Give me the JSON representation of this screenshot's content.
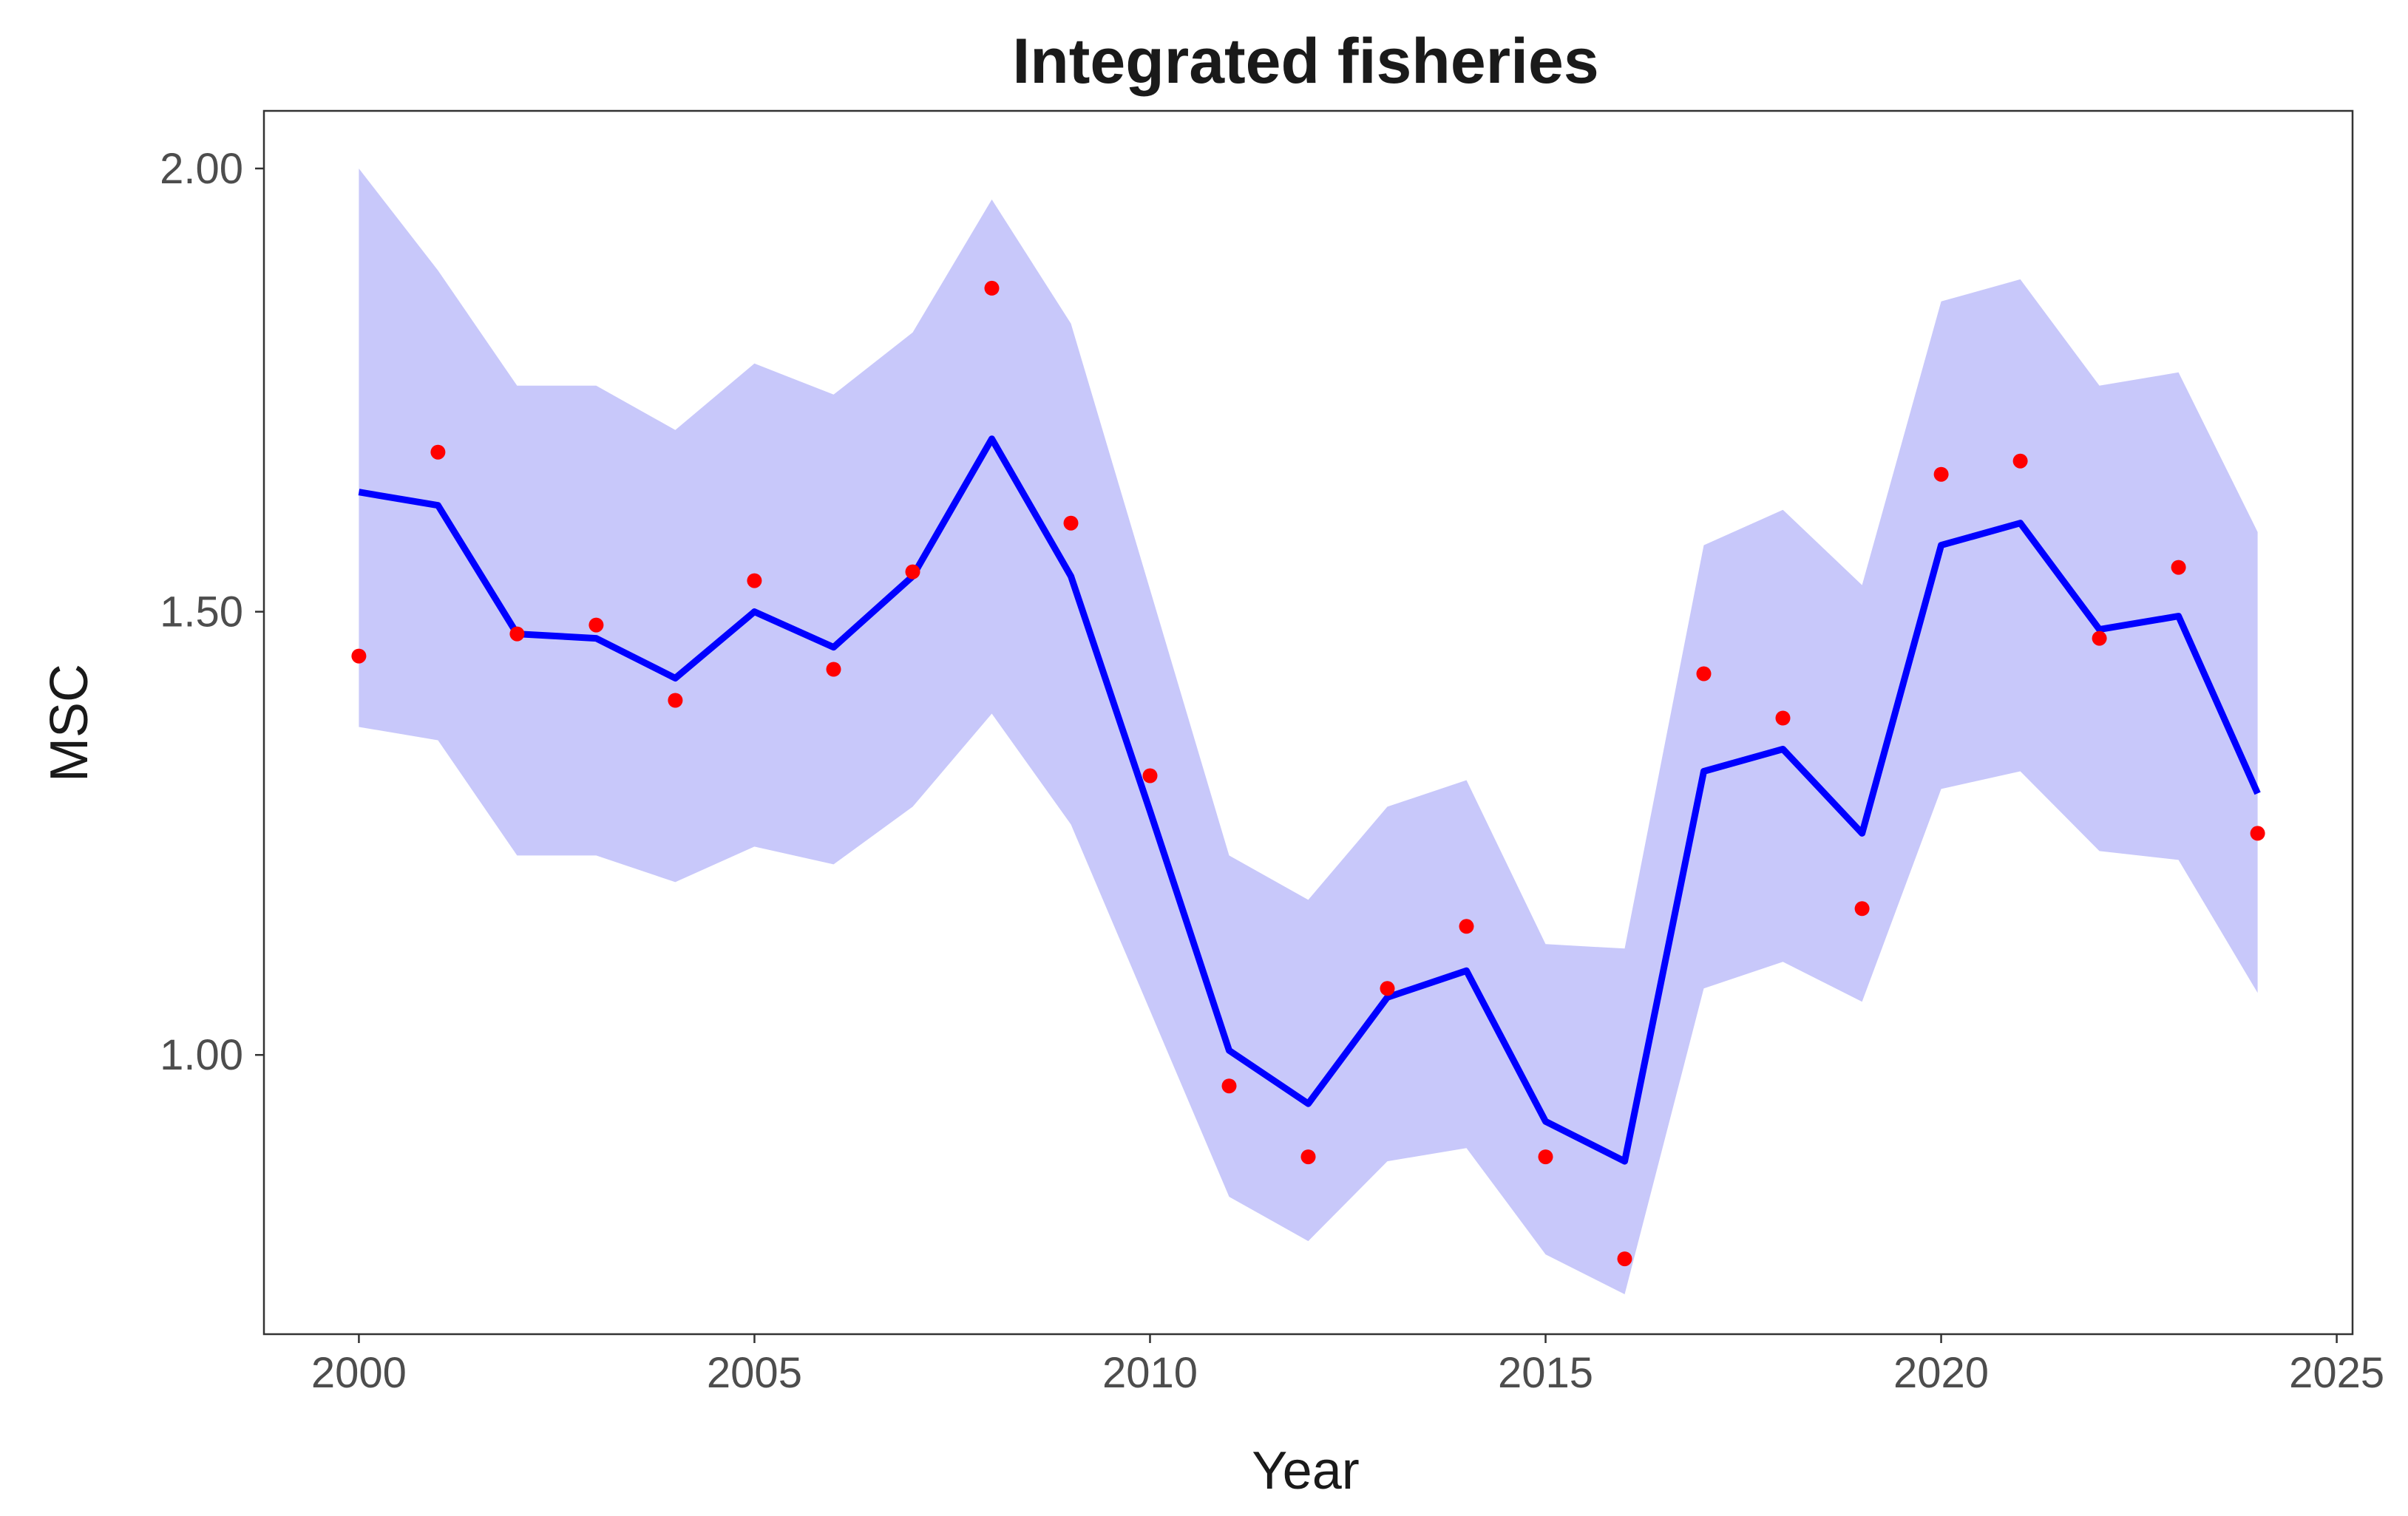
{
  "chart_data": {
    "type": "line",
    "title": "Integrated fisheries",
    "xlabel": "Year",
    "ylabel": "MSC",
    "xlim": [
      1998.8,
      2025.2
    ],
    "ylim": [
      0.685,
      2.065
    ],
    "x_ticks": [
      2000,
      2005,
      2010,
      2015,
      2020,
      2025
    ],
    "x_tick_labels": [
      "2000",
      "2005",
      "2010",
      "2015",
      "2020",
      "2025"
    ],
    "y_ticks": [
      1.0,
      1.5,
      2.0
    ],
    "y_tick_labels": [
      "1.00",
      "1.50",
      "2.00"
    ],
    "grid": false,
    "legend": "none",
    "x": [
      2000,
      2001,
      2002,
      2003,
      2004,
      2005,
      2006,
      2007,
      2008,
      2009,
      2010,
      2011,
      2012,
      2013,
      2014,
      2015,
      2016,
      2017,
      2018,
      2019,
      2020,
      2021,
      2022,
      2023,
      2024
    ],
    "series": [
      {
        "kind": "ribbon",
        "color": "#c8c8fa",
        "lower": [
          1.37,
          1.355,
          1.225,
          1.225,
          1.195,
          1.235,
          1.215,
          1.28,
          1.385,
          1.26,
          1.05,
          0.84,
          0.79,
          0.88,
          0.895,
          0.775,
          0.73,
          1.075,
          1.105,
          1.06,
          1.3,
          1.32,
          1.23,
          1.22,
          1.07
        ],
        "upper": [
          2.0,
          1.885,
          1.755,
          1.755,
          1.705,
          1.78,
          1.745,
          1.815,
          1.965,
          1.825,
          1.525,
          1.225,
          1.175,
          1.28,
          1.31,
          1.125,
          1.12,
          1.575,
          1.615,
          1.53,
          1.85,
          1.875,
          1.755,
          1.77,
          1.59
        ]
      },
      {
        "kind": "line",
        "color": "#0000ff",
        "values": [
          1.635,
          1.62,
          1.475,
          1.47,
          1.425,
          1.5,
          1.46,
          1.54,
          1.695,
          1.54,
          1.275,
          1.005,
          0.945,
          1.065,
          1.095,
          0.925,
          0.88,
          1.32,
          1.345,
          1.25,
          1.575,
          1.6,
          1.48,
          1.495,
          1.295
        ]
      },
      {
        "kind": "points",
        "color": "#ff0000",
        "values": [
          1.45,
          1.68,
          1.475,
          1.485,
          1.4,
          1.535,
          1.435,
          1.545,
          1.865,
          1.6,
          1.315,
          0.965,
          0.885,
          1.075,
          1.145,
          0.885,
          0.77,
          1.43,
          1.38,
          1.165,
          1.655,
          1.67,
          1.47,
          1.55,
          1.25
        ]
      }
    ]
  }
}
